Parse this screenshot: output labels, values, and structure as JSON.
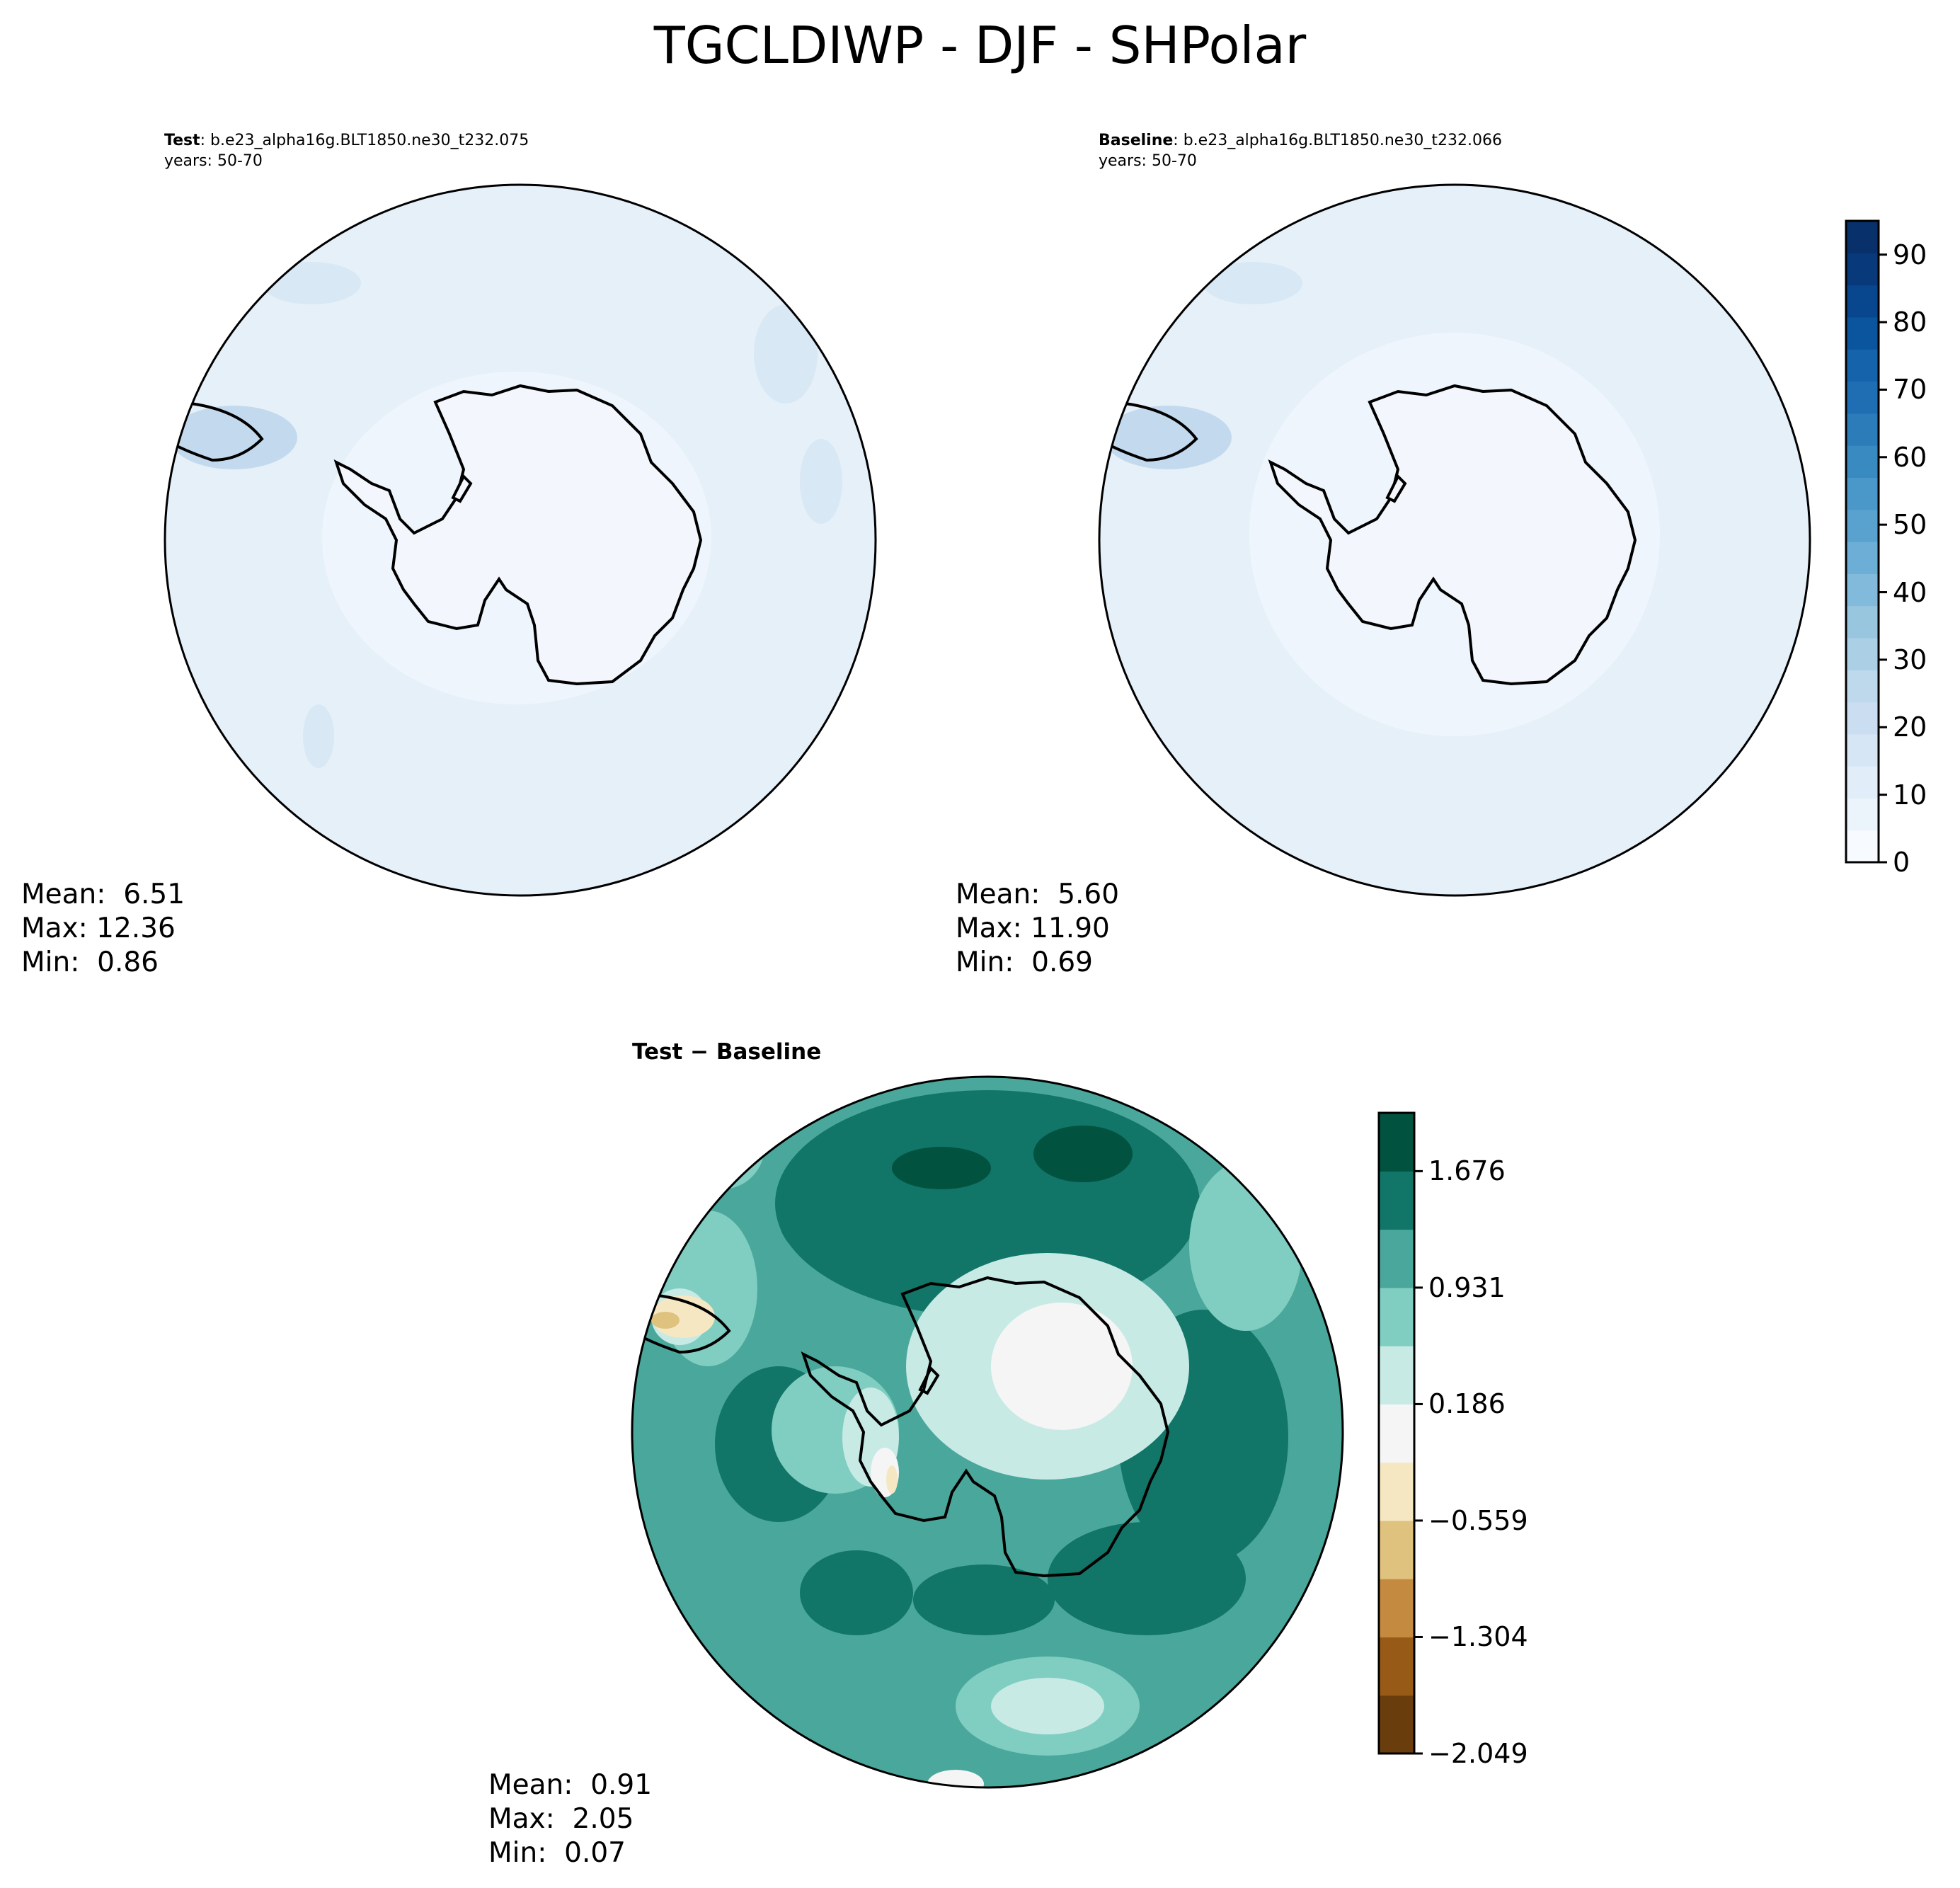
{
  "figure_title": "TGCLDIWP - DJF - SHPolar",
  "panels": {
    "test": {
      "label": "Test",
      "case": ": b.e23_alpha16g.BLT1850.ne30_t232.075",
      "years": "years: 50-70",
      "mean": "Mean:  6.51",
      "max": "Max: 12.36",
      "min": "Min:  0.86"
    },
    "baseline": {
      "label": "Baseline",
      "case": ": b.e23_alpha16g.BLT1850.ne30_t232.066",
      "years": "years: 50-70",
      "mean": "Mean:  5.60",
      "max": "Max: 11.90",
      "min": "Min:  0.69"
    },
    "diff": {
      "title": "Test − Baseline",
      "mean": "Mean:  0.91",
      "max": "Max:  2.05",
      "min": "Min:  0.07"
    }
  },
  "chart_data": [
    {
      "type": "heatmap",
      "title": "Test",
      "projection": "south polar stereographic",
      "colormap": "Blues",
      "levels_range": [
        0,
        95
      ],
      "level_step": 5,
      "colorbar_ticks": [
        "0",
        "10",
        "20",
        "30",
        "40",
        "50",
        "60",
        "70",
        "80",
        "90"
      ],
      "stats": {
        "mean": 6.51,
        "max": 12.36,
        "min": 0.86
      }
    },
    {
      "type": "heatmap",
      "title": "Baseline",
      "projection": "south polar stereographic",
      "colormap": "Blues",
      "levels_range": [
        0,
        95
      ],
      "level_step": 5,
      "colorbar_ticks": [
        "0",
        "10",
        "20",
        "30",
        "40",
        "50",
        "60",
        "70",
        "80",
        "90"
      ],
      "stats": {
        "mean": 5.6,
        "max": 11.9,
        "min": 0.69
      }
    },
    {
      "type": "heatmap",
      "title": "Test − Baseline",
      "projection": "south polar stereographic",
      "colormap": "BrBG",
      "levels": [
        -2.049,
        2.049
      ],
      "colorbar_ticks": [
        "−2.049",
        "−1.304",
        "−0.559",
        "0.186",
        "0.931",
        "1.676"
      ],
      "stats": {
        "mean": 0.91,
        "max": 2.05,
        "min": 0.07
      }
    }
  ],
  "colors": {
    "blues": [
      "#f7fbff",
      "#ebf3fb",
      "#e1edf8",
      "#d6e6f4",
      "#cbdef1",
      "#bed8ec",
      "#abd0e6",
      "#98c6df",
      "#82badb",
      "#6caed6",
      "#59a1cf",
      "#4a98c9",
      "#3a8ac2",
      "#2c7cba",
      "#1f6eb3",
      "#1563aa",
      "#0b559f",
      "#08478d",
      "#08397a",
      "#08306b"
    ],
    "brbg": [
      "#6a3d0c",
      "#985b17",
      "#c48a3f",
      "#dfc27d",
      "#f6e7c3",
      "#f5f5f5",
      "#c7eae5",
      "#80cdc1",
      "#4aa79b",
      "#117568",
      "#01523f"
    ],
    "test_map": {
      "base": "#e6f0f9",
      "inner": "#eff5fc",
      "patch": "#d9e8f5",
      "patch_dark": "#c3d9ee"
    },
    "baseline_map": {
      "base": "#e6f0f9",
      "inner": "#eff5fc",
      "patch": "#d9e8f5",
      "patch_dark": "#c3d9ee"
    }
  }
}
